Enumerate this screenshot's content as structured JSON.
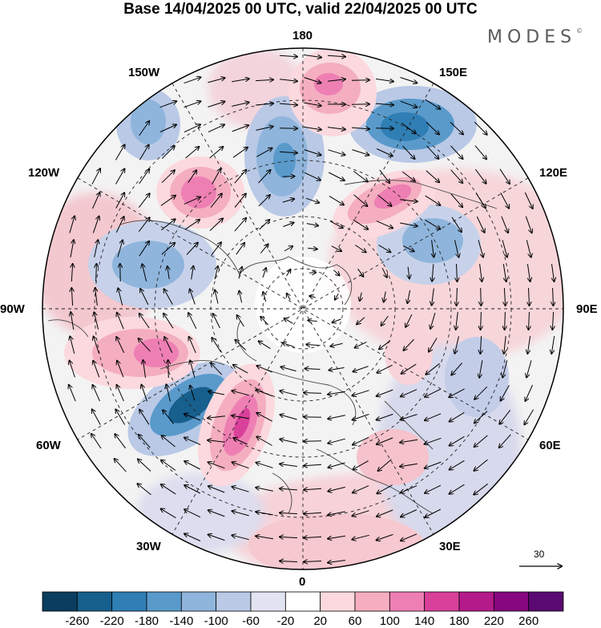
{
  "title": "Base 14/04/2025 00 UTC, valid 22/04/2025 00 UTC",
  "brand": "MODES",
  "brand_mark": "©",
  "longitude_labels": {
    "lon_180": "180",
    "lon_150e": "150E",
    "lon_120e": "120E",
    "lon_90e": "90E",
    "lon_60e": "60E",
    "lon_30e": "30E",
    "lon_0": "0",
    "lon_30w": "30W",
    "lon_60w": "60W",
    "lon_90w": "90W",
    "lon_120w": "120W",
    "lon_150w": "150W"
  },
  "reference_vector": {
    "label": "30",
    "icon": "arrow-right-icon"
  },
  "colorbar": {
    "labels": [
      "-260",
      "-220",
      "-180",
      "-140",
      "-100",
      "-60",
      "-20",
      "20",
      "60",
      "100",
      "140",
      "180",
      "220",
      "260"
    ],
    "colors": [
      "#0b3d5e",
      "#175f8c",
      "#2f7fb5",
      "#5a9acb",
      "#8fb5dc",
      "#b9c9e6",
      "#e3e4f1",
      "#ffffff",
      "#fbd9de",
      "#f4aec0",
      "#ee7fb3",
      "#d9409a",
      "#b51a8a",
      "#86077f",
      "#5a0a72"
    ]
  },
  "map": {
    "projection": "north-polar-stereographic",
    "fields": [
      "geopotential-height-anomaly-shading",
      "wind-vectors",
      "latitude-circles",
      "meridians",
      "coastlines"
    ],
    "low_anomaly_color": "#2f7fb5",
    "high_anomaly_color": "#d9409a"
  }
}
